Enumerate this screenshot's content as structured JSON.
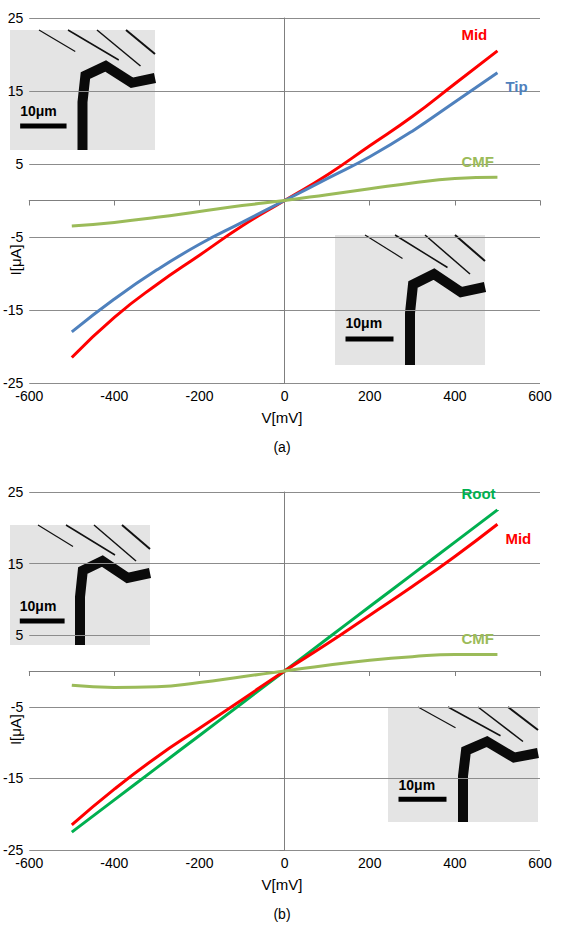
{
  "chart_data": [
    {
      "type": "line",
      "title": "(a)",
      "x_label": "V[mV]",
      "y_label": "I[μA]",
      "x": [
        -500,
        -400,
        -300,
        -200,
        -100,
        0,
        100,
        200,
        300,
        400,
        500
      ],
      "series": [
        {
          "name": "Mid",
          "color": "#ff0000",
          "values": [
            -21.5,
            -16,
            -11.5,
            -7.5,
            -3.5,
            0,
            3.5,
            7.5,
            11.5,
            16,
            20.5
          ]
        },
        {
          "name": "Tip",
          "color": "#4f81bd",
          "values": [
            -18,
            -13.5,
            -9.5,
            -6,
            -3,
            0,
            3,
            6,
            9.5,
            13.5,
            17.5
          ]
        },
        {
          "name": "CMF",
          "color": "#9bbb59",
          "values": [
            -3.5,
            -3,
            -2.3,
            -1.5,
            -0.7,
            0,
            0.8,
            1.6,
            2.4,
            3,
            3.2
          ]
        }
      ],
      "xlim": [
        -600,
        600
      ],
      "xticks": [
        -600,
        -400,
        -200,
        0,
        200,
        400,
        600
      ],
      "ylim": [
        -25,
        25
      ],
      "yticks": [
        -25,
        -15,
        -5,
        5,
        15,
        25
      ],
      "grid": true,
      "marker": "none",
      "annotations": [
        "10μm",
        "10μm"
      ]
    },
    {
      "type": "line",
      "title": "(b)",
      "x_label": "V[mV]",
      "y_label": "I[μA]",
      "x": [
        -500,
        -400,
        -300,
        -200,
        -100,
        0,
        100,
        200,
        300,
        400,
        500
      ],
      "series": [
        {
          "name": "Root",
          "color": "#00b050",
          "values": [
            -22.5,
            -18,
            -13.5,
            -9,
            -4.5,
            0,
            4.5,
            9,
            13.5,
            18,
            22.5
          ]
        },
        {
          "name": "Mid",
          "color": "#ff0000",
          "values": [
            -21.5,
            -16.5,
            -12,
            -8,
            -4,
            0,
            3.8,
            7.8,
            11.8,
            16,
            20.5
          ]
        },
        {
          "name": "CMF",
          "color": "#9bbb59",
          "values": [
            -2,
            -2.3,
            -2.2,
            -1.6,
            -0.8,
            0,
            0.8,
            1.5,
            2,
            2.3,
            2.3
          ]
        }
      ],
      "xlim": [
        -600,
        600
      ],
      "xticks": [
        -600,
        -400,
        -200,
        0,
        200,
        400,
        600
      ],
      "ylim": [
        -25,
        25
      ],
      "yticks": [
        -25,
        -15,
        -5,
        5,
        15,
        25
      ],
      "grid": true,
      "marker": "none",
      "annotations": [
        "10μm",
        "10μm"
      ]
    }
  ]
}
